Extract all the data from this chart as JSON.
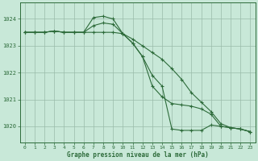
{
  "title": "Graphe pression niveau de la mer (hPa)",
  "background_color": "#c8e8d8",
  "plot_bg_color": "#c8e8d8",
  "grid_color": "#99bbaa",
  "line_color": "#2d6b3a",
  "xlim": [
    -0.5,
    23.5
  ],
  "ylim": [
    1019.4,
    1024.6
  ],
  "yticks": [
    1020,
    1021,
    1022,
    1023,
    1024
  ],
  "xticks": [
    0,
    1,
    2,
    3,
    4,
    5,
    6,
    7,
    8,
    9,
    10,
    11,
    12,
    13,
    14,
    15,
    16,
    17,
    18,
    19,
    20,
    21,
    22,
    23
  ],
  "series": [
    [
      1023.5,
      1023.5,
      1023.5,
      1023.55,
      1023.5,
      1023.5,
      1023.5,
      1023.5,
      1023.5,
      1023.5,
      1023.45,
      1023.25,
      1023.0,
      1022.75,
      1022.5,
      1022.15,
      1021.75,
      1021.25,
      1020.9,
      1020.55,
      1020.1,
      1019.95,
      1019.9,
      1019.8
    ],
    [
      1023.5,
      1023.5,
      1023.5,
      1023.55,
      1023.5,
      1023.5,
      1023.5,
      1024.05,
      1024.1,
      1024.0,
      1023.45,
      1023.1,
      1022.6,
      1021.9,
      1021.5,
      1019.9,
      1019.85,
      1019.85,
      1019.85,
      1020.05,
      1020.0,
      1019.95,
      1019.9,
      1019.8
    ],
    [
      1023.5,
      1023.5,
      1023.5,
      1023.55,
      1023.5,
      1023.5,
      1023.5,
      1023.75,
      1023.85,
      1023.8,
      1023.45,
      1023.1,
      1022.6,
      1021.5,
      1021.1,
      1020.85,
      1020.8,
      1020.75,
      1020.65,
      1020.45,
      1020.0,
      1019.95,
      1019.9,
      1019.8
    ]
  ]
}
